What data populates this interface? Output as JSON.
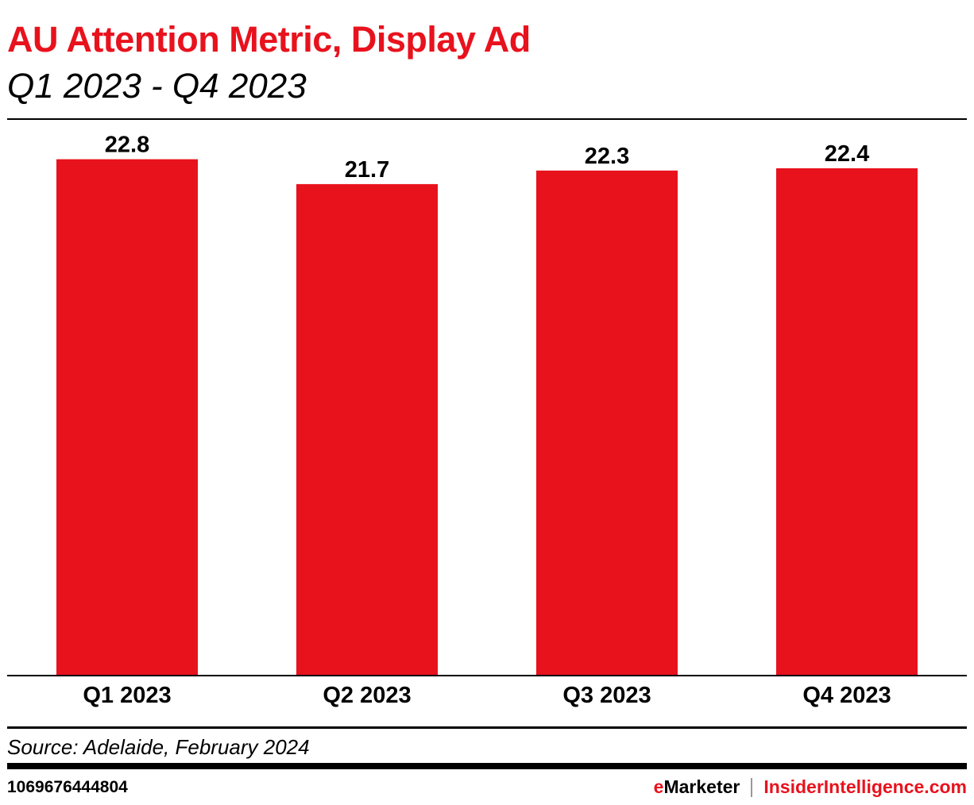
{
  "header": {
    "title": "AU Attention Metric, Display Ad",
    "subtitle": "Q1 2023 - Q4 2023"
  },
  "chart_data": {
    "type": "bar",
    "title": "AU Attention Metric, Display Ad",
    "subtitle": "Q1 2023 - Q4 2023",
    "categories": [
      "Q1 2023",
      "Q2 2023",
      "Q3 2023",
      "Q4 2023"
    ],
    "values": [
      22.8,
      21.7,
      22.3,
      22.4
    ],
    "data_labels": [
      "22.8",
      "21.7",
      "22.3",
      "22.4"
    ],
    "xlabel": "",
    "ylabel": "",
    "ylim": [
      0,
      24.4
    ],
    "grid": false,
    "bar_color": "#e8121d"
  },
  "footer": {
    "source": "Source: Adelaide, February 2024",
    "chart_id": "1069676444804",
    "brand_left_e": "e",
    "brand_left_rest": "Marketer",
    "brand_right": "InsiderIntelligence.com"
  }
}
